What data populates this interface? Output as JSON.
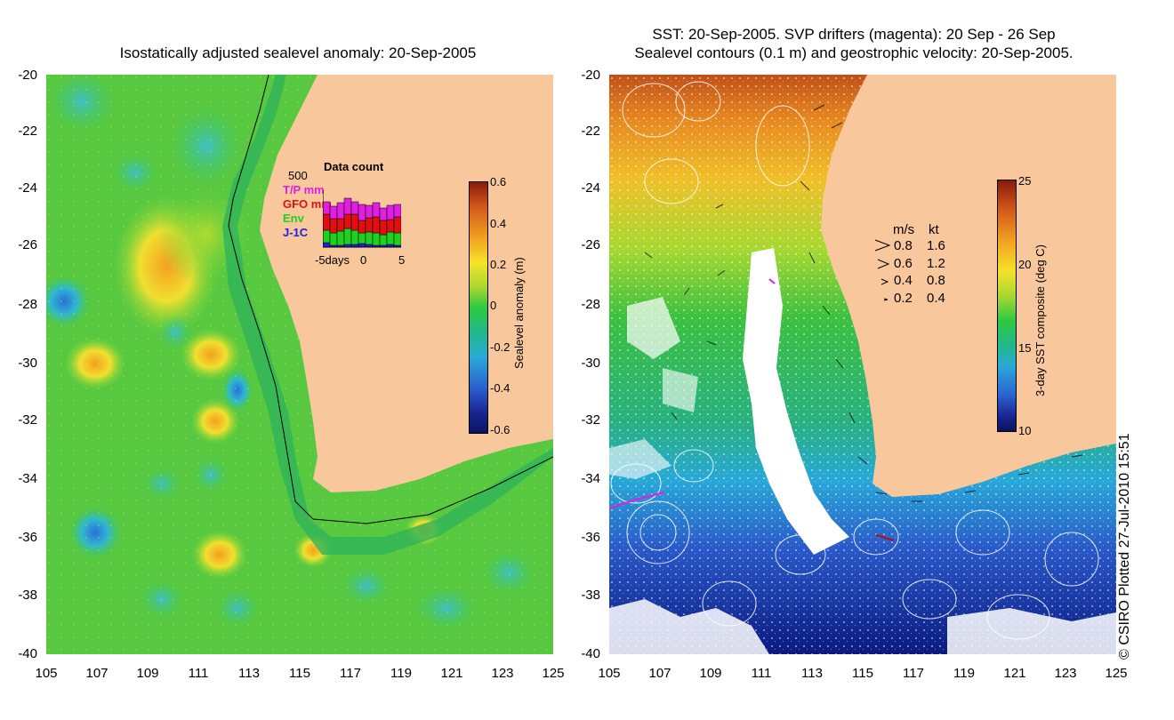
{
  "left_panel": {
    "title": "Isostatically adjusted sealevel anomaly: 20-Sep-2005",
    "y_ticks": [
      "-20",
      "-22",
      "-24",
      "-26",
      "-28",
      "-30",
      "-32",
      "-34",
      "-36",
      "-38",
      "-40"
    ],
    "x_ticks": [
      "105",
      "107",
      "109",
      "111",
      "113",
      "115",
      "117",
      "119",
      "121",
      "123",
      "125"
    ],
    "colorbar": {
      "label": "Sealevel anomaly (m)",
      "ticks": [
        "0.6",
        "0.4",
        "0.2",
        "0",
        "-0.2",
        "-0.4",
        "-0.6"
      ]
    },
    "inset": {
      "title": "Data count",
      "y_tick": "500",
      "x_labels": [
        "-5days",
        "0",
        "5"
      ],
      "legend": [
        {
          "label": "T/P mm",
          "color": "#e020e0"
        },
        {
          "label": "GFO mm",
          "color": "#e01010"
        },
        {
          "label": "Env",
          "color": "#20d020"
        },
        {
          "label": "J-1C",
          "color": "#2020e0"
        }
      ]
    }
  },
  "right_panel": {
    "title_line1": "SST: 20-Sep-2005. SVP drifters (magenta): 20 Sep - 26 Sep",
    "title_line2": "Sealevel contours (0.1 m) and geostrophic velocity: 20-Sep-2005.",
    "y_ticks": [
      "-20",
      "-22",
      "-24",
      "-26",
      "-28",
      "-30",
      "-32",
      "-34",
      "-36",
      "-38",
      "-40"
    ],
    "x_ticks": [
      "105",
      "107",
      "109",
      "111",
      "113",
      "115",
      "117",
      "119",
      "121",
      "123",
      "125"
    ],
    "colorbar": {
      "label": "3-day SST composite (deg C)",
      "ticks": [
        "25",
        "20",
        "15",
        "10"
      ]
    },
    "velocity_legend": {
      "header_ms": "m/s",
      "header_kt": "kt",
      "rows": [
        {
          "ms": "0.8",
          "kt": "1.6"
        },
        {
          "ms": "0.6",
          "kt": "1.2"
        },
        {
          "ms": "0.4",
          "kt": "0.8"
        },
        {
          "ms": "0.2",
          "kt": "0.4"
        }
      ]
    }
  },
  "credit": "© CSIRO Plotted 27-Jul-2010 15:51",
  "colors": {
    "land": "#f8c89c",
    "sea_mid": "#3cc84a",
    "white_cloud": "#ffffff"
  }
}
